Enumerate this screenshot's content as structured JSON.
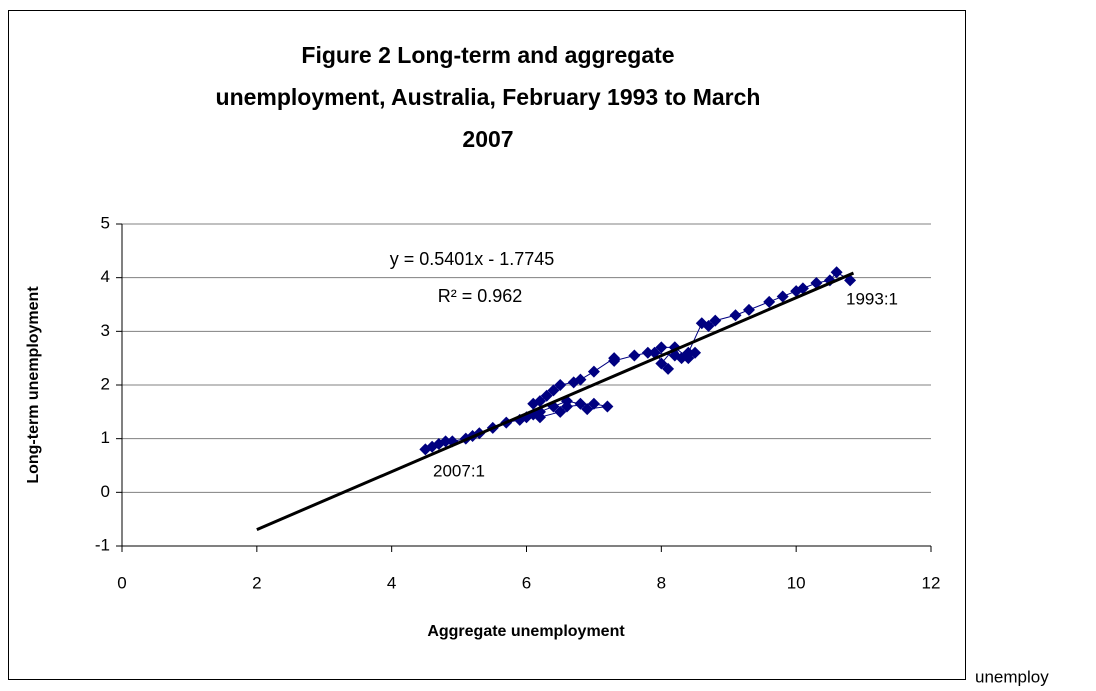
{
  "chart_data": {
    "type": "scatter",
    "title": [
      "Figure 2 Long-term and aggregate",
      "unemployment, Australia, February 1993 to March",
      "2007"
    ],
    "x_label": "Aggregate unemployment",
    "y_label": "Long-term unemployment",
    "xlim": [
      0,
      12
    ],
    "xticks": [
      0,
      2,
      4,
      6,
      8,
      10,
      12
    ],
    "ylim": [
      -1,
      5
    ],
    "yticks": [
      -1,
      0,
      1,
      2,
      3,
      4,
      5
    ],
    "grid": true,
    "series": [
      {
        "name": "Long-term unemployment",
        "color": "#000080",
        "x": [
          10.8,
          10.6,
          10.5,
          10.3,
          10.1,
          10.0,
          9.8,
          9.6,
          9.3,
          9.1,
          8.8,
          8.7,
          8.6,
          8.4,
          8.3,
          8.2,
          8.0,
          8.1,
          7.9,
          8.2,
          8.5,
          8.4,
          8.2,
          8.0,
          7.8,
          7.6,
          7.3,
          7.3,
          7.0,
          6.8,
          6.7,
          6.5,
          6.4,
          6.3,
          6.2,
          6.1,
          6.1,
          6.2,
          6.5,
          6.6,
          7.0,
          7.2,
          6.9,
          6.8,
          6.6,
          6.4,
          6.2,
          6.0,
          5.9,
          5.7,
          5.5,
          5.3,
          5.2,
          5.1,
          4.9,
          4.8,
          4.7,
          4.6,
          4.5
        ],
        "values": [
          3.95,
          4.1,
          3.95,
          3.9,
          3.8,
          3.75,
          3.65,
          3.55,
          3.4,
          3.3,
          3.2,
          3.1,
          3.15,
          2.6,
          2.5,
          2.7,
          2.4,
          2.3,
          2.6,
          2.55,
          2.6,
          2.5,
          2.7,
          2.7,
          2.6,
          2.55,
          2.45,
          2.5,
          2.25,
          2.1,
          2.05,
          2.0,
          1.9,
          1.8,
          1.7,
          1.65,
          1.45,
          1.4,
          1.5,
          1.6,
          1.65,
          1.6,
          1.55,
          1.65,
          1.7,
          1.6,
          1.5,
          1.4,
          1.35,
          1.3,
          1.2,
          1.1,
          1.05,
          1.0,
          0.95,
          0.95,
          0.9,
          0.85,
          0.8
        ]
      }
    ],
    "trendline": {
      "x": [
        2,
        10.85
      ],
      "values": [
        -0.6943,
        4.0858
      ]
    },
    "equation": "y = 0.5401x - 1.7745",
    "r_squared": "R² = 0.962",
    "annotations": [
      "1993:1",
      "2007:1"
    ],
    "stray_text": "unemploy"
  }
}
